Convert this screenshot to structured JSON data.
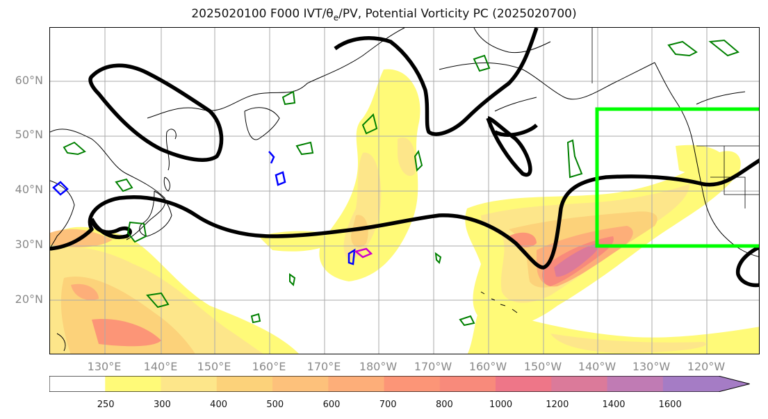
{
  "title": "2025020100 F000 IVT/θ",
  "title_sub": "e",
  "title_rest": "/PV, Potential Vorticity PC (2025020700)",
  "lat_labels": [
    "60°N",
    "50°N",
    "40°N",
    "30°N",
    "20°N"
  ],
  "lon_labels": [
    "130°E",
    "140°E",
    "150°E",
    "160°E",
    "170°E",
    "180°W",
    "170°W",
    "160°W",
    "150°W",
    "140°W",
    "130°W",
    "120°W"
  ],
  "colorbar": {
    "ticks": [
      "250",
      "300",
      "400",
      "500",
      "600",
      "700",
      "800",
      "1000",
      "1200",
      "1400",
      "1600"
    ],
    "colors": [
      "#ffffff",
      "#fffa78",
      "#fde68a",
      "#fcd27a",
      "#fdc17b",
      "#fdae79",
      "#fc9577",
      "#f88a7b",
      "#ee7688",
      "#db7a9a",
      "#c07bb4",
      "#a57cc5"
    ]
  },
  "colors": {
    "contour_black": "#000000",
    "box_green": "#00ff00",
    "pv_green": "#008000",
    "pv_blue": "#0000ff",
    "pv_magenta": "#cc00cc"
  }
}
